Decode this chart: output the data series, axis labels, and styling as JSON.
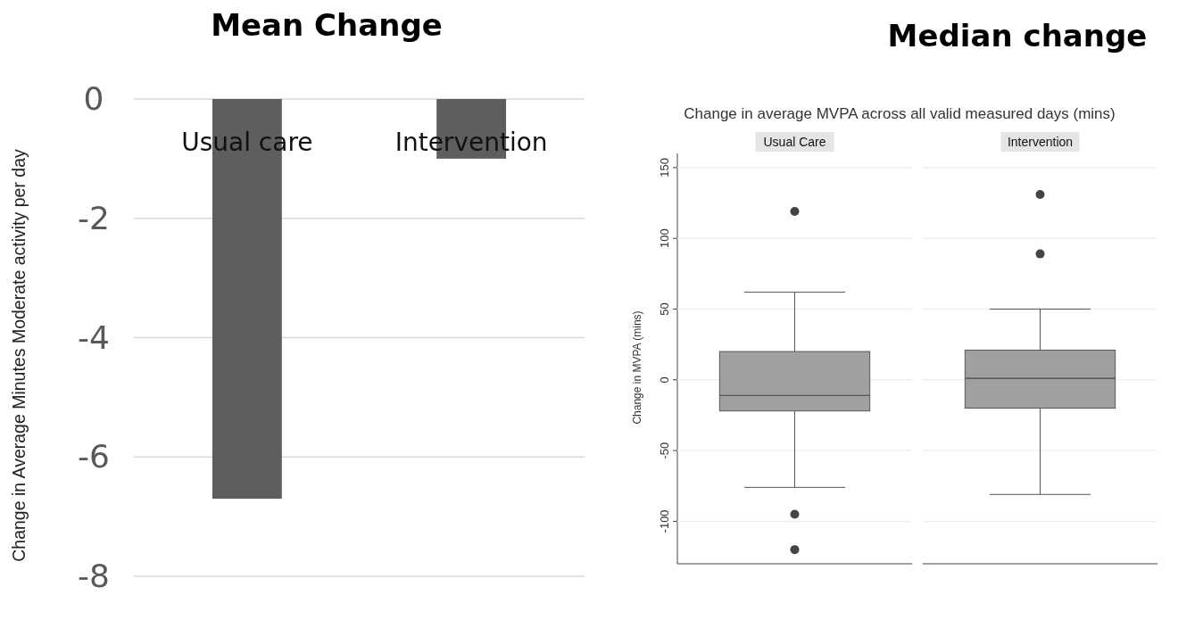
{
  "chart_data": [
    {
      "type": "bar",
      "title": "Mean Change",
      "ylabel": "Change in Average Minutes Moderate activity per day",
      "categories": [
        "Usual care",
        "Intervention"
      ],
      "values": [
        -6.7,
        -1.0
      ],
      "color": "#5e5e5e",
      "ylim": [
        -8,
        0
      ],
      "yticks": [
        -8,
        -6,
        -4,
        -2,
        0
      ],
      "grid": "y"
    },
    {
      "type": "box",
      "title": "Median change",
      "subtitle": "Change in average MVPA across all valid measured days (mins)",
      "ylabel": "Change in MVPA (mins)",
      "categories": [
        "Usual Care",
        "Intervention"
      ],
      "color": "#a0a0a0",
      "boxes": [
        {
          "low": -76,
          "q1": -22,
          "median": -11,
          "q3": 20,
          "high": 62,
          "outliers": [
            119,
            -95,
            -120
          ]
        },
        {
          "low": -81,
          "q1": -20,
          "median": 1,
          "q3": 21,
          "high": 50,
          "outliers": [
            131,
            89
          ]
        }
      ],
      "ylim": [
        -130,
        160
      ],
      "yticks": [
        -100,
        -50,
        0,
        50,
        100,
        150
      ],
      "grid": "y"
    }
  ]
}
